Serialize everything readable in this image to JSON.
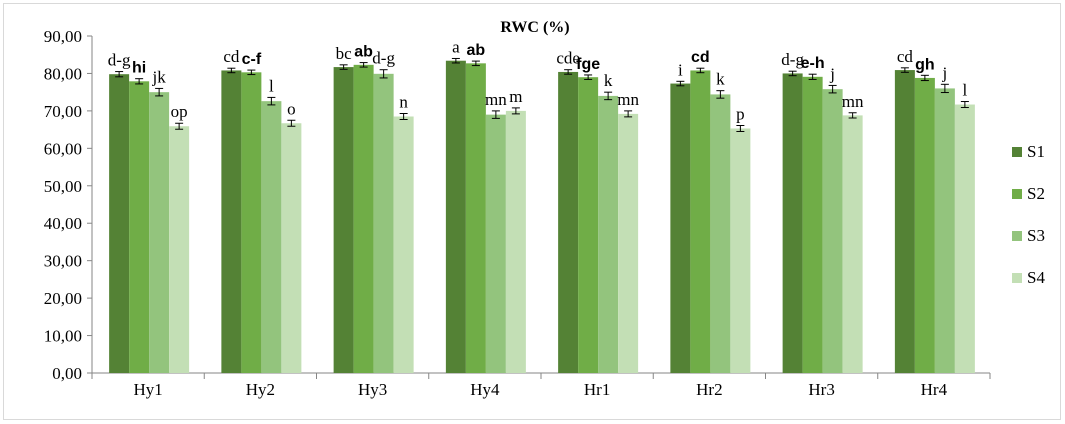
{
  "chart_data": {
    "type": "bar",
    "title": "RWC (%)",
    "xlabel": "",
    "ylabel": "",
    "ylim": [
      0,
      90
    ],
    "ytick_step": 10,
    "ytick_labels": [
      "0,00",
      "10,00",
      "20,00",
      "30,00",
      "40,00",
      "50,00",
      "60,00",
      "70,00",
      "80,00",
      "90,00"
    ],
    "categories": [
      "Hy1",
      "Hy2",
      "Hy3",
      "Hy4",
      "Hr1",
      "Hr2",
      "Hr3",
      "Hr4"
    ],
    "legend_position": "right",
    "grid": false,
    "error_bars": true,
    "series": [
      {
        "name": "S1",
        "color": "#548235",
        "values": [
          79.8,
          80.8,
          81.7,
          83.4,
          80.4,
          77.3,
          80.0,
          80.9
        ],
        "errors": [
          0.7,
          0.6,
          0.6,
          0.6,
          0.6,
          0.6,
          0.6,
          0.6
        ],
        "letters": [
          "d-g",
          "cd",
          "bc",
          "a",
          "cde",
          "i",
          "d-g",
          "cd"
        ]
      },
      {
        "name": "S2",
        "color": "#70ad47",
        "values": [
          77.9,
          80.3,
          82.3,
          82.7,
          79.0,
          80.8,
          79.1,
          78.8
        ],
        "errors": [
          0.7,
          0.6,
          0.6,
          0.6,
          0.6,
          0.6,
          0.7,
          0.7
        ],
        "letters": [
          "hi",
          "c-f",
          "ab",
          "ab",
          "fge",
          "cd",
          "e-h",
          "gh"
        ]
      },
      {
        "name": "S3",
        "color": "#93c47d",
        "values": [
          75.0,
          72.6,
          79.9,
          69.0,
          74.0,
          74.4,
          75.8,
          76.0
        ],
        "errors": [
          1.0,
          1.0,
          1.1,
          1.0,
          1.0,
          1.0,
          1.0,
          1.1
        ],
        "letters": [
          "jk",
          "l",
          "d-g",
          "mn",
          "k",
          "k",
          "j",
          "j"
        ]
      },
      {
        "name": "S4",
        "color": "#c3dfb5",
        "values": [
          65.9,
          66.7,
          68.5,
          70.0,
          69.2,
          65.3,
          68.8,
          71.7
        ],
        "errors": [
          0.8,
          0.8,
          0.8,
          0.8,
          0.8,
          0.8,
          0.7,
          0.8
        ],
        "letters": [
          "op",
          "o",
          "n",
          "m",
          "mn",
          "p",
          "mn",
          "l"
        ]
      }
    ]
  }
}
